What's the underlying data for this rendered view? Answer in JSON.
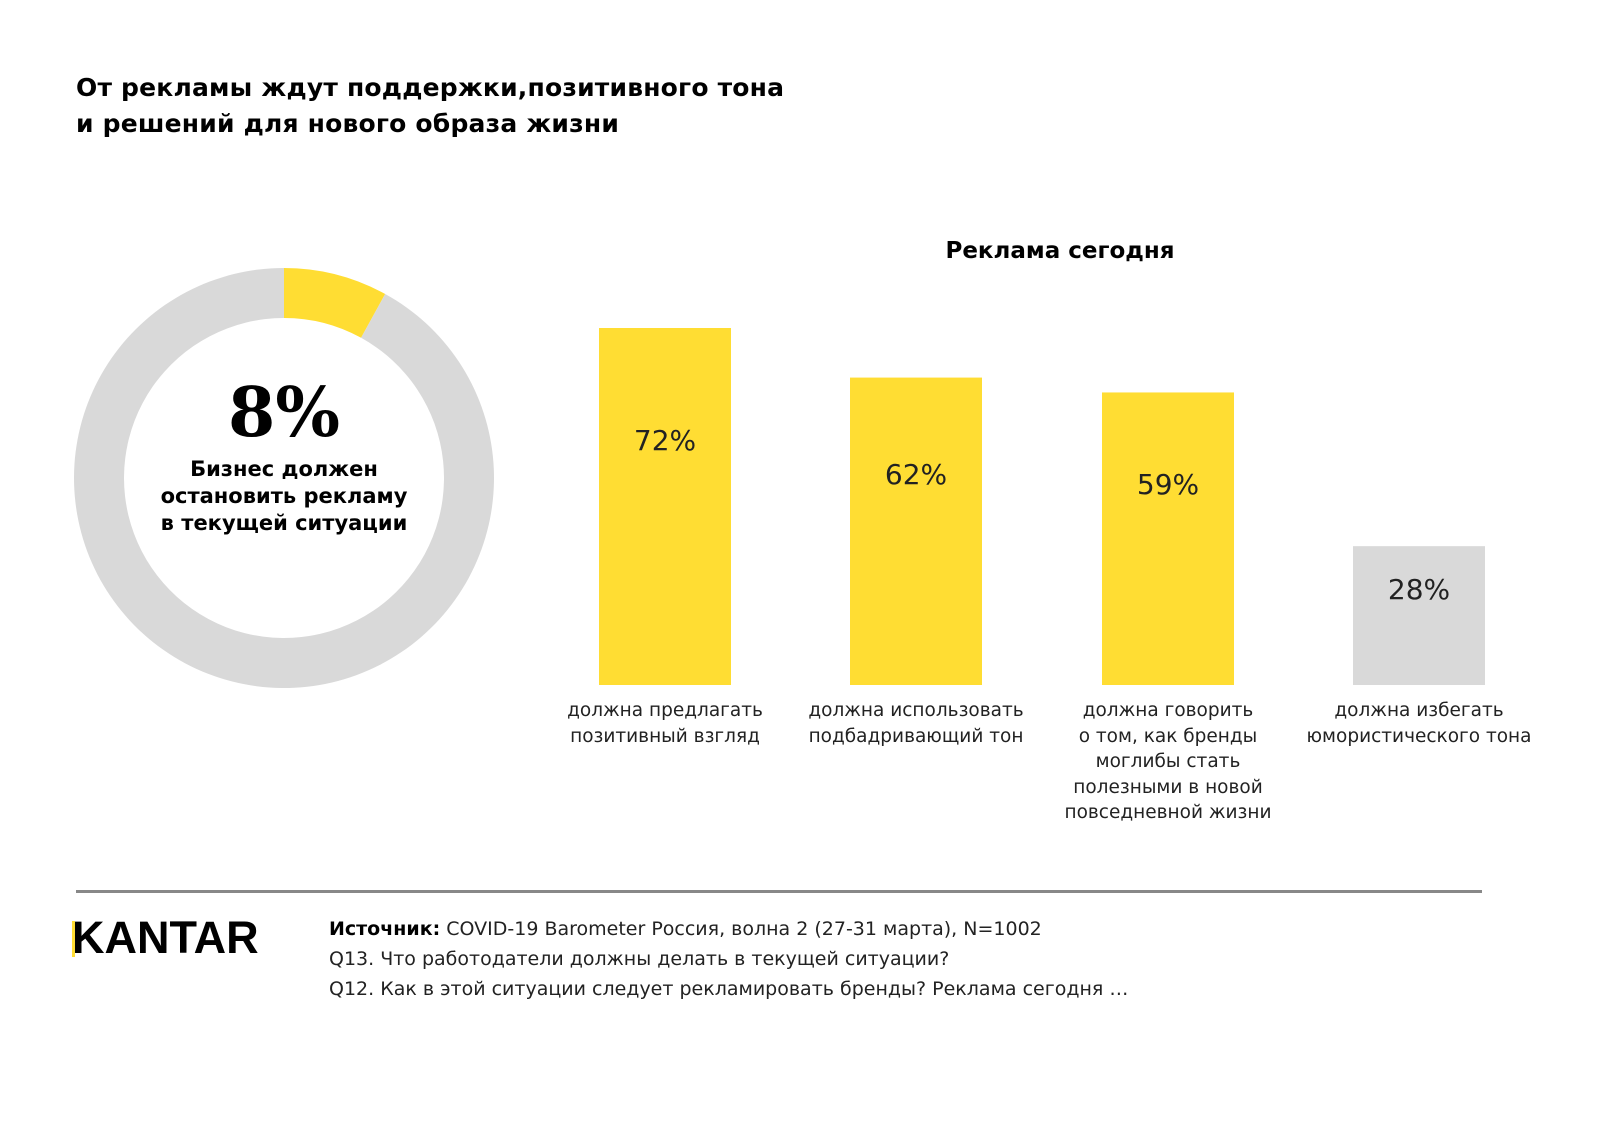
{
  "title": {
    "lines": [
      "От рекламы ждут поддержки,позитивного тона",
      "и решений для нового образа жизни"
    ]
  },
  "colors": {
    "accent": "#FFDD33",
    "neutral": "#D9D9D9",
    "divider": "#888888",
    "text": "#000000"
  },
  "chart_data": [
    {
      "type": "pie",
      "title": "",
      "donut": true,
      "slices": [
        {
          "label": "Бизнес должен остановить рекламу в текущей ситуации",
          "value": 8,
          "color": "#FFDD33"
        },
        {
          "label": "",
          "value": 92,
          "color": "#D9D9D9"
        }
      ],
      "center_value": "8%",
      "center_caption_lines": [
        "Бизнес должен",
        "остановить рекламу",
        "в текущей ситуации"
      ]
    },
    {
      "type": "bar",
      "title": "Реклама сегодня",
      "xlabel": "",
      "ylabel": "",
      "ylim": [
        0,
        72
      ],
      "grid": false,
      "categories": [
        [
          "должна предлагать",
          "позитивный взгляд"
        ],
        [
          "должна использовать",
          "подбадривающий тон"
        ],
        [
          "должна говорить",
          "о том, как бренды",
          "моглибы стать",
          "полезными в новой",
          "повседневной жизни"
        ],
        [
          "должна избегать",
          "юмористического тона"
        ]
      ],
      "values": [
        72,
        62,
        59,
        28
      ],
      "value_labels": [
        "72%",
        "62%",
        "59%",
        "28%"
      ],
      "bar_colors": [
        "#FFDD33",
        "#FFDD33",
        "#FFDD33",
        "#D9D9D9"
      ]
    }
  ],
  "footer": {
    "logo": "KANTAR",
    "source_label": "Источник:",
    "source_text": " COVID-19 Barometer Россия, волна 2 (27-31 марта), N=1002",
    "q13": "Q13. Что работодатели должны делать в текущей ситуации?",
    "q12": "Q12. Как в этой ситуации следует рекламировать бренды? Реклама сегодня …"
  }
}
